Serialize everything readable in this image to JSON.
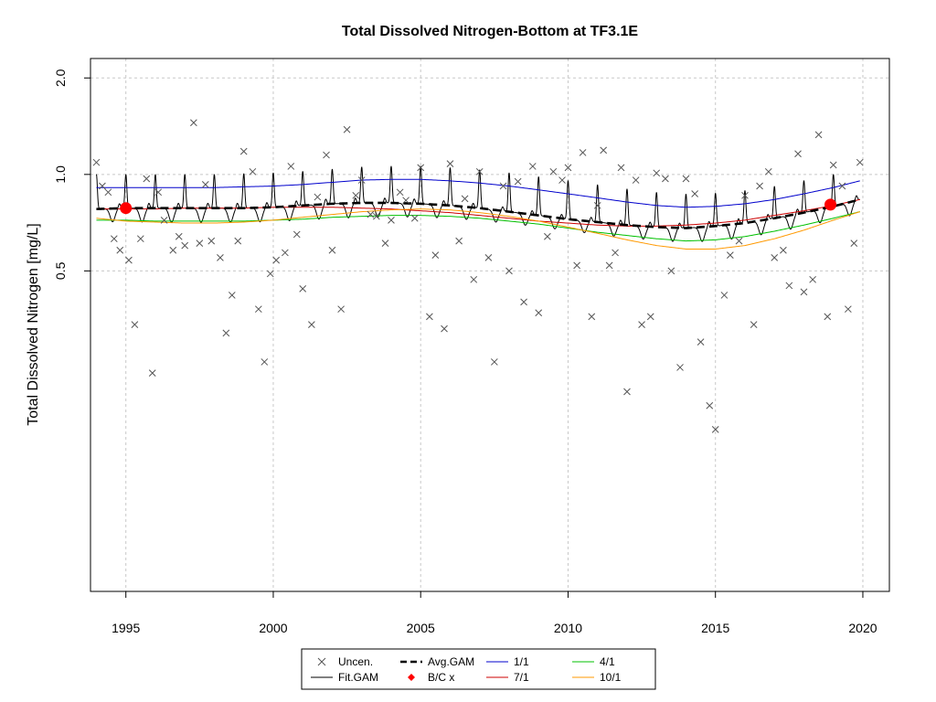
{
  "chart_data": {
    "type": "line",
    "title": "Total Dissolved Nitrogen-Bottom at TF3.1E",
    "xlabel": "",
    "ylabel": "Total Dissolved Nitrogen [mg/L]",
    "xlim": [
      1993.8,
      2020.9
    ],
    "ylim": [
      0.05,
      2.3
    ],
    "y_scale": "log",
    "x_ticks": [
      1995,
      2000,
      2005,
      2010,
      2015,
      2020
    ],
    "y_ticks": [
      0.5,
      1.0,
      2.0
    ],
    "y_tick_labels": [
      "0.5",
      "1.0",
      "2.0"
    ],
    "grid": true,
    "legend_position": "bottom",
    "legend": [
      {
        "label": "Uncen.",
        "key": "uncen"
      },
      {
        "label": "Fit.GAM",
        "key": "fit"
      },
      {
        "label": "Avg.GAM",
        "key": "avg"
      },
      {
        "label": "B/C x",
        "key": "bc"
      },
      {
        "label": "1/1",
        "key": "s1"
      },
      {
        "label": "4/1",
        "key": "s4"
      },
      {
        "label": "7/1",
        "key": "s7"
      },
      {
        "label": "10/1",
        "key": "s10"
      }
    ],
    "colors": {
      "uncen": "#555555",
      "fit": "#000000",
      "avg": "#000000",
      "bc": "#ff0000",
      "s1": "#0000cc",
      "s4": "#00c000",
      "s7": "#cc0000",
      "s10": "#ff9900"
    },
    "series": [
      {
        "name": "1/1",
        "key": "s1",
        "x": [
          1994,
          1995,
          1996,
          1997,
          1998,
          1999,
          2000,
          2001,
          2002,
          2003,
          2004,
          2005,
          2006,
          2007,
          2008,
          2009,
          2010,
          2011,
          2012,
          2013,
          2014,
          2015,
          2016,
          2017,
          2018,
          2019,
          2019.9
        ],
        "y": [
          0.91,
          0.91,
          0.91,
          0.91,
          0.91,
          0.915,
          0.92,
          0.93,
          0.945,
          0.96,
          0.965,
          0.965,
          0.955,
          0.94,
          0.92,
          0.895,
          0.87,
          0.845,
          0.82,
          0.8,
          0.79,
          0.795,
          0.81,
          0.835,
          0.87,
          0.91,
          0.955
        ]
      },
      {
        "name": "4/1",
        "key": "s4",
        "x": [
          1994,
          1995,
          1996,
          1997,
          1998,
          1999,
          2000,
          2001,
          2002,
          2003,
          2004,
          2005,
          2006,
          2007,
          2008,
          2009,
          2010,
          2011,
          2012,
          2013,
          2014,
          2015,
          2016,
          2017,
          2018,
          2019,
          2019.9
        ],
        "y": [
          0.72,
          0.72,
          0.715,
          0.715,
          0.715,
          0.715,
          0.72,
          0.725,
          0.735,
          0.74,
          0.745,
          0.745,
          0.74,
          0.73,
          0.715,
          0.7,
          0.68,
          0.66,
          0.645,
          0.63,
          0.62,
          0.625,
          0.64,
          0.665,
          0.695,
          0.73,
          0.765
        ]
      },
      {
        "name": "7/1",
        "key": "s7",
        "x": [
          1994,
          1995,
          1996,
          1997,
          1998,
          1999,
          2000,
          2001,
          2002,
          2003,
          2004,
          2005,
          2006,
          2007,
          2008,
          2009,
          2010,
          2011,
          2012,
          2013,
          2014,
          2015,
          2016,
          2017,
          2018,
          2019,
          2019.9
        ],
        "y": [
          0.78,
          0.78,
          0.78,
          0.785,
          0.785,
          0.785,
          0.79,
          0.79,
          0.79,
          0.785,
          0.78,
          0.77,
          0.76,
          0.745,
          0.73,
          0.715,
          0.705,
          0.695,
          0.69,
          0.69,
          0.695,
          0.705,
          0.72,
          0.745,
          0.77,
          0.8,
          0.835
        ]
      },
      {
        "name": "10/1",
        "key": "s10",
        "x": [
          1994,
          1995,
          1996,
          1997,
          1998,
          1999,
          2000,
          2001,
          2002,
          2003,
          2004,
          2005,
          2006,
          2007,
          2008,
          2009,
          2010,
          2011,
          2012,
          2013,
          2014,
          2015,
          2016,
          2017,
          2018,
          2019,
          2019.9
        ],
        "y": [
          0.73,
          0.715,
          0.71,
          0.705,
          0.705,
          0.71,
          0.72,
          0.735,
          0.75,
          0.765,
          0.775,
          0.78,
          0.775,
          0.76,
          0.74,
          0.715,
          0.685,
          0.655,
          0.625,
          0.6,
          0.585,
          0.585,
          0.6,
          0.63,
          0.67,
          0.72,
          0.765
        ]
      },
      {
        "name": "Avg.GAM",
        "key": "avg",
        "x": [
          1994,
          1995,
          1996,
          1997,
          1998,
          1999,
          2000,
          2001,
          2002,
          2003,
          2004,
          2005,
          2006,
          2007,
          2008,
          2009,
          2010,
          2011,
          2012,
          2013,
          2014,
          2015,
          2016,
          2017,
          2018,
          2019,
          2019.9
        ],
        "y": [
          0.78,
          0.785,
          0.785,
          0.785,
          0.785,
          0.785,
          0.79,
          0.8,
          0.81,
          0.815,
          0.815,
          0.81,
          0.8,
          0.785,
          0.765,
          0.745,
          0.725,
          0.71,
          0.695,
          0.685,
          0.68,
          0.69,
          0.705,
          0.73,
          0.76,
          0.795,
          0.835
        ]
      }
    ],
    "fit_gam": {
      "name": "Fit.GAM",
      "key": "fit",
      "note_x_range": [
        1994,
        2019.9
      ],
      "seasonal_min_month_fraction": 0.6,
      "seasonal_peak_offsets": {
        "upper": "1/1",
        "lower": "4/1"
      }
    },
    "bc_points": {
      "name": "B/C x",
      "key": "bc",
      "x": [
        1995.0,
        2018.9
      ],
      "y": [
        0.785,
        0.805
      ]
    },
    "uncen_points": {
      "name": "Uncen.",
      "key": "uncen",
      "x": [
        1994.0,
        1994.2,
        1994.4,
        1994.6,
        1994.8,
        1995.1,
        1995.3,
        1995.5,
        1995.7,
        1995.9,
        1996.1,
        1996.3,
        1996.6,
        1996.8,
        1997.0,
        1997.3,
        1997.5,
        1997.7,
        1997.9,
        1998.2,
        1998.4,
        1998.6,
        1998.8,
        1999.0,
        1999.3,
        1999.5,
        1999.7,
        1999.9,
        2000.1,
        2000.4,
        2000.6,
        2000.8,
        2001.0,
        2001.3,
        2001.5,
        2001.8,
        2002.0,
        2002.3,
        2002.5,
        2002.8,
        2003.0,
        2003.3,
        2003.5,
        2003.8,
        2004.0,
        2004.3,
        2004.5,
        2004.8,
        2005.0,
        2005.3,
        2005.5,
        2005.8,
        2006.0,
        2006.3,
        2006.5,
        2006.8,
        2007.0,
        2007.3,
        2007.5,
        2007.8,
        2008.0,
        2008.3,
        2008.5,
        2008.8,
        2009.0,
        2009.3,
        2009.5,
        2009.8,
        2010.0,
        2010.3,
        2010.5,
        2010.8,
        2011.0,
        2011.2,
        2011.4,
        2011.6,
        2011.8,
        2012.0,
        2012.3,
        2012.5,
        2012.8,
        2013.0,
        2013.3,
        2013.5,
        2013.8,
        2014.0,
        2014.3,
        2014.5,
        2014.8,
        2015.0,
        2015.3,
        2015.5,
        2015.8,
        2016.0,
        2016.3,
        2016.5,
        2016.8,
        2017.0,
        2017.3,
        2017.5,
        2017.8,
        2018.0,
        2018.3,
        2018.5,
        2018.8,
        2019.0,
        2019.3,
        2019.5,
        2019.7,
        2019.9
      ],
      "y": [
        1.09,
        0.92,
        0.88,
        0.63,
        0.58,
        0.54,
        0.34,
        0.63,
        0.97,
        0.24,
        0.88,
        0.72,
        0.58,
        0.64,
        0.6,
        1.45,
        0.61,
        0.93,
        0.62,
        0.55,
        0.32,
        0.42,
        0.62,
        1.18,
        1.02,
        0.38,
        0.26,
        0.49,
        0.54,
        0.57,
        1.06,
        0.65,
        0.44,
        0.34,
        0.85,
        1.15,
        0.58,
        0.38,
        1.38,
        0.86,
        0.96,
        0.75,
        0.74,
        0.61,
        0.72,
        0.88,
        0.83,
        0.73,
        1.05,
        0.36,
        0.56,
        0.33,
        1.08,
        0.62,
        0.84,
        0.47,
        1.02,
        0.55,
        0.26,
        0.92,
        0.5,
        0.95,
        0.4,
        1.06,
        0.37,
        0.64,
        1.02,
        0.96,
        1.05,
        0.52,
        1.17,
        0.36,
        0.8,
        1.19,
        0.52,
        0.57,
        1.05,
        0.21,
        0.96,
        0.34,
        0.36,
        1.01,
        0.97,
        0.5,
        0.25,
        0.97,
        0.87,
        0.3,
        0.19,
        0.16,
        0.42,
        0.56,
        0.62,
        0.86,
        0.34,
        0.92,
        1.02,
        0.55,
        0.58,
        0.45,
        1.16,
        0.43,
        0.47,
        1.33,
        0.36,
        1.07,
        0.92,
        0.38,
        0.61,
        1.09
      ]
    }
  }
}
